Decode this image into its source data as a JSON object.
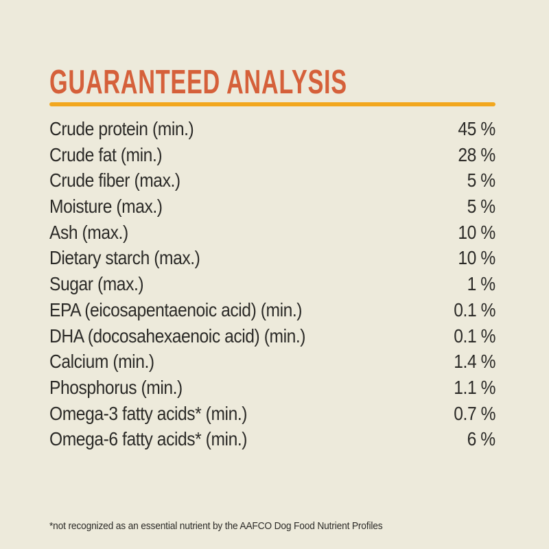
{
  "page": {
    "background_color": "#EDEADB",
    "text_color": "#2B2A27"
  },
  "header": {
    "title": "GUARANTEED ANALYSIS",
    "title_color": "#D5603A",
    "divider_color": "#F2A71E"
  },
  "analysis_table": {
    "rows": [
      {
        "label": "Crude protein (min.)",
        "value": "45 %"
      },
      {
        "label": "Crude fat (min.)",
        "value": "28 %"
      },
      {
        "label": "Crude fiber (max.)",
        "value": "5 %"
      },
      {
        "label": "Moisture (max.)",
        "value": "5 %"
      },
      {
        "label": "Ash (max.)",
        "value": "10 %"
      },
      {
        "label": "Dietary starch (max.)",
        "value": "10 %"
      },
      {
        "label": "Sugar (max.)",
        "value": "1 %"
      },
      {
        "label": "EPA (eicosapentaenoic acid) (min.)",
        "value": "0.1 %"
      },
      {
        "label": "DHA (docosahexaenoic acid) (min.)",
        "value": "0.1 %"
      },
      {
        "label": "Calcium (min.)",
        "value": "1.4 %"
      },
      {
        "label": "Phosphorus (min.)",
        "value": "1.1 %"
      },
      {
        "label": "Omega-3 fatty acids* (min.)",
        "value": "0.7 %"
      },
      {
        "label": "Omega-6 fatty acids* (min.)",
        "value": "6 %"
      }
    ]
  },
  "footnote": {
    "text": "*not recognized as an essential nutrient by the AAFCO Dog Food Nutrient Profiles"
  }
}
